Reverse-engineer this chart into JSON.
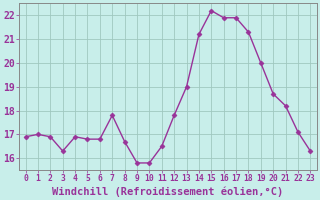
{
  "x": [
    0,
    1,
    2,
    3,
    4,
    5,
    6,
    7,
    8,
    9,
    10,
    11,
    12,
    13,
    14,
    15,
    16,
    17,
    18,
    19,
    20,
    21,
    22,
    23
  ],
  "y": [
    16.9,
    17.0,
    16.9,
    16.3,
    16.9,
    16.8,
    16.8,
    17.8,
    16.7,
    15.8,
    15.8,
    16.5,
    17.8,
    19.0,
    21.2,
    22.2,
    21.9,
    21.9,
    21.3,
    20.0,
    18.7,
    18.2,
    17.1,
    16.3
  ],
  "ylim": [
    15.5,
    22.5
  ],
  "yticks": [
    16,
    17,
    18,
    19,
    20,
    21,
    22
  ],
  "xlim": [
    -0.5,
    23.5
  ],
  "xticks": [
    0,
    1,
    2,
    3,
    4,
    5,
    6,
    7,
    8,
    9,
    10,
    11,
    12,
    13,
    14,
    15,
    16,
    17,
    18,
    19,
    20,
    21,
    22,
    23
  ],
  "line_color": "#993399",
  "marker": "D",
  "marker_size": 2.5,
  "line_width": 1.0,
  "bg_color": "#c8eeea",
  "grid_color": "#a0c8c0",
  "xlabel": "Windchill (Refroidissement éolien,°C)",
  "xlabel_fontsize": 7.5,
  "tick_fontsize": 7,
  "xtick_fontsize": 5.8,
  "tick_color": "#993399",
  "label_color": "#993399",
  "axis_color": "#888888"
}
